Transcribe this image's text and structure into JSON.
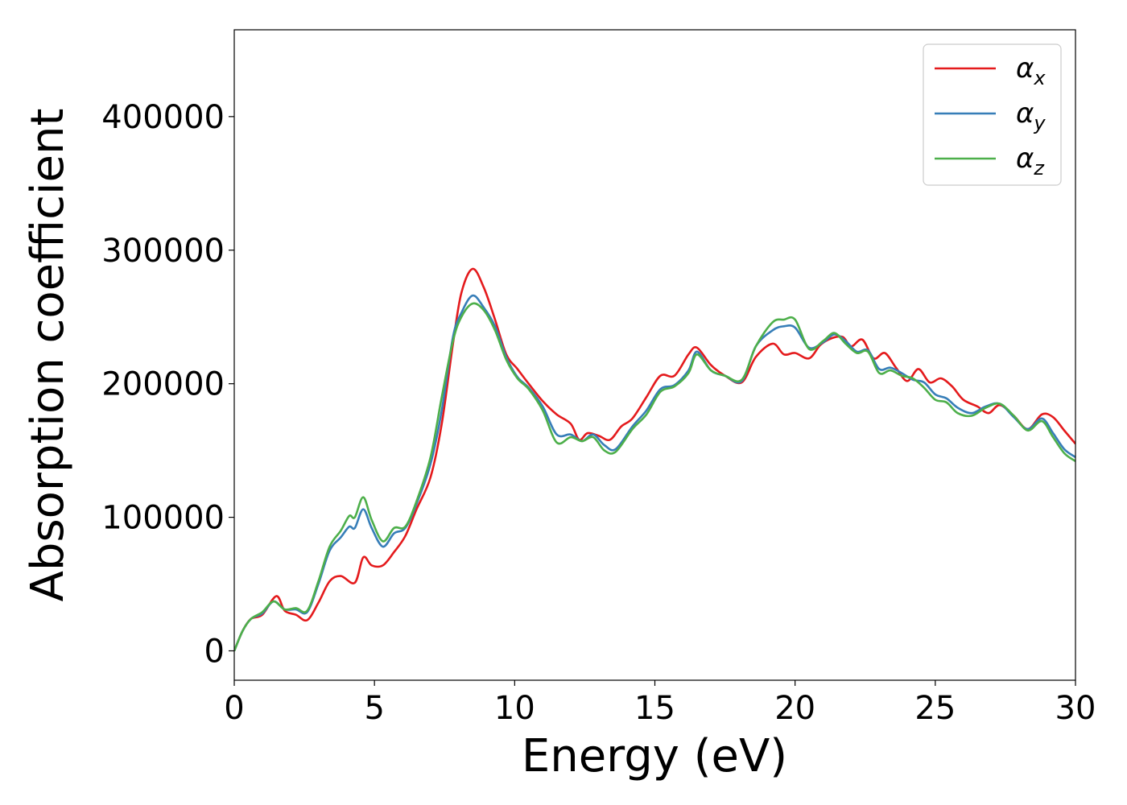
{
  "chart_data": {
    "type": "line",
    "title": "",
    "xlabel": "Energy (eV)",
    "ylabel": "Absorption coefficient",
    "xlim": [
      0,
      30
    ],
    "ylim": [
      -22000,
      465000
    ],
    "xticks": [
      0,
      5,
      10,
      15,
      20,
      25,
      30
    ],
    "yticks": [
      0,
      100000,
      200000,
      300000,
      400000
    ],
    "grid": false,
    "legend_position": "top-right",
    "series": [
      {
        "name": "α_x",
        "legend_main": "α",
        "legend_sub": "x",
        "color": "#e41a1c",
        "points": [
          [
            0,
            0
          ],
          [
            0.3,
            15000
          ],
          [
            0.6,
            24000
          ],
          [
            1.0,
            27000
          ],
          [
            1.5,
            41000
          ],
          [
            1.8,
            30000
          ],
          [
            2.2,
            27000
          ],
          [
            2.6,
            23000
          ],
          [
            3.0,
            36000
          ],
          [
            3.4,
            52000
          ],
          [
            3.8,
            56000
          ],
          [
            4.3,
            51000
          ],
          [
            4.6,
            70000
          ],
          [
            4.9,
            64000
          ],
          [
            5.3,
            64000
          ],
          [
            5.7,
            74000
          ],
          [
            6.1,
            86000
          ],
          [
            6.5,
            106000
          ],
          [
            7.0,
            130000
          ],
          [
            7.4,
            170000
          ],
          [
            7.8,
            230000
          ],
          [
            8.1,
            268000
          ],
          [
            8.5,
            286000
          ],
          [
            8.9,
            272000
          ],
          [
            9.3,
            248000
          ],
          [
            9.7,
            222000
          ],
          [
            10.1,
            211000
          ],
          [
            10.5,
            200000
          ],
          [
            11.0,
            187000
          ],
          [
            11.5,
            177000
          ],
          [
            12.0,
            170000
          ],
          [
            12.3,
            158000
          ],
          [
            12.6,
            163000
          ],
          [
            13.0,
            161000
          ],
          [
            13.4,
            158000
          ],
          [
            13.8,
            168000
          ],
          [
            14.2,
            174000
          ],
          [
            14.7,
            190000
          ],
          [
            15.2,
            206000
          ],
          [
            15.7,
            206000
          ],
          [
            16.2,
            222000
          ],
          [
            16.5,
            227000
          ],
          [
            17.0,
            214000
          ],
          [
            17.5,
            206000
          ],
          [
            18.1,
            201000
          ],
          [
            18.6,
            220000
          ],
          [
            19.2,
            230000
          ],
          [
            19.6,
            222000
          ],
          [
            20.0,
            223000
          ],
          [
            20.5,
            219000
          ],
          [
            20.9,
            229000
          ],
          [
            21.3,
            234000
          ],
          [
            21.7,
            235000
          ],
          [
            22.0,
            228000
          ],
          [
            22.4,
            233000
          ],
          [
            22.8,
            219000
          ],
          [
            23.2,
            223000
          ],
          [
            23.6,
            212000
          ],
          [
            24.0,
            202000
          ],
          [
            24.4,
            211000
          ],
          [
            24.8,
            201000
          ],
          [
            25.2,
            204000
          ],
          [
            25.6,
            198000
          ],
          [
            26.0,
            188000
          ],
          [
            26.5,
            183000
          ],
          [
            26.9,
            178000
          ],
          [
            27.3,
            184000
          ],
          [
            27.8,
            176000
          ],
          [
            28.3,
            166000
          ],
          [
            28.8,
            177000
          ],
          [
            29.2,
            175000
          ],
          [
            29.6,
            165000
          ],
          [
            30.0,
            155000
          ]
        ]
      },
      {
        "name": "α_y",
        "legend_main": "α",
        "legend_sub": "y",
        "color": "#377eb8",
        "points": [
          [
            0,
            0
          ],
          [
            0.3,
            15000
          ],
          [
            0.6,
            24000
          ],
          [
            1.0,
            28000
          ],
          [
            1.4,
            37000
          ],
          [
            1.8,
            31000
          ],
          [
            2.2,
            31000
          ],
          [
            2.6,
            29000
          ],
          [
            3.0,
            50000
          ],
          [
            3.4,
            75000
          ],
          [
            3.8,
            85000
          ],
          [
            4.1,
            93000
          ],
          [
            4.3,
            92000
          ],
          [
            4.6,
            106000
          ],
          [
            4.9,
            92000
          ],
          [
            5.3,
            78000
          ],
          [
            5.7,
            88000
          ],
          [
            6.1,
            92000
          ],
          [
            6.5,
            110000
          ],
          [
            7.0,
            140000
          ],
          [
            7.4,
            180000
          ],
          [
            7.8,
            235000
          ],
          [
            8.1,
            253000
          ],
          [
            8.5,
            266000
          ],
          [
            8.9,
            257000
          ],
          [
            9.3,
            243000
          ],
          [
            9.7,
            220000
          ],
          [
            10.1,
            205000
          ],
          [
            10.5,
            197000
          ],
          [
            11.0,
            183000
          ],
          [
            11.5,
            162000
          ],
          [
            12.0,
            162000
          ],
          [
            12.4,
            157000
          ],
          [
            12.8,
            162000
          ],
          [
            13.2,
            154000
          ],
          [
            13.6,
            151000
          ],
          [
            14.2,
            168000
          ],
          [
            14.7,
            180000
          ],
          [
            15.2,
            196000
          ],
          [
            15.7,
            199000
          ],
          [
            16.2,
            210000
          ],
          [
            16.5,
            224000
          ],
          [
            17.0,
            210000
          ],
          [
            17.5,
            206000
          ],
          [
            18.1,
            202000
          ],
          [
            18.6,
            228000
          ],
          [
            19.2,
            240000
          ],
          [
            19.6,
            243000
          ],
          [
            20.0,
            242000
          ],
          [
            20.5,
            227000
          ],
          [
            21.0,
            231000
          ],
          [
            21.4,
            237000
          ],
          [
            21.8,
            232000
          ],
          [
            22.2,
            224000
          ],
          [
            22.6,
            225000
          ],
          [
            23.0,
            211000
          ],
          [
            23.4,
            212000
          ],
          [
            23.8,
            208000
          ],
          [
            24.2,
            203000
          ],
          [
            24.6,
            201000
          ],
          [
            25.0,
            192000
          ],
          [
            25.4,
            189000
          ],
          [
            25.8,
            182000
          ],
          [
            26.3,
            178000
          ],
          [
            26.8,
            183000
          ],
          [
            27.3,
            185000
          ],
          [
            27.8,
            175000
          ],
          [
            28.3,
            166000
          ],
          [
            28.8,
            174000
          ],
          [
            29.2,
            163000
          ],
          [
            29.6,
            151000
          ],
          [
            30.0,
            145000
          ]
        ]
      },
      {
        "name": "α_z",
        "legend_main": "α",
        "legend_sub": "z",
        "color": "#4daf4a",
        "points": [
          [
            0,
            0
          ],
          [
            0.3,
            15000
          ],
          [
            0.6,
            24000
          ],
          [
            1.0,
            29000
          ],
          [
            1.4,
            37000
          ],
          [
            1.8,
            31000
          ],
          [
            2.2,
            32000
          ],
          [
            2.6,
            30000
          ],
          [
            3.0,
            52000
          ],
          [
            3.4,
            78000
          ],
          [
            3.8,
            90000
          ],
          [
            4.1,
            101000
          ],
          [
            4.3,
            100000
          ],
          [
            4.6,
            115000
          ],
          [
            4.9,
            98000
          ],
          [
            5.3,
            82000
          ],
          [
            5.7,
            92000
          ],
          [
            6.1,
            93000
          ],
          [
            6.5,
            112000
          ],
          [
            7.0,
            145000
          ],
          [
            7.4,
            190000
          ],
          [
            7.8,
            232000
          ],
          [
            8.1,
            250000
          ],
          [
            8.5,
            260000
          ],
          [
            8.9,
            255000
          ],
          [
            9.3,
            240000
          ],
          [
            9.7,
            218000
          ],
          [
            10.1,
            204000
          ],
          [
            10.5,
            196000
          ],
          [
            11.0,
            180000
          ],
          [
            11.5,
            156000
          ],
          [
            12.0,
            160000
          ],
          [
            12.4,
            157000
          ],
          [
            12.8,
            160000
          ],
          [
            13.2,
            150000
          ],
          [
            13.6,
            149000
          ],
          [
            14.2,
            166000
          ],
          [
            14.7,
            177000
          ],
          [
            15.2,
            194000
          ],
          [
            15.7,
            198000
          ],
          [
            16.2,
            208000
          ],
          [
            16.5,
            222000
          ],
          [
            17.0,
            210000
          ],
          [
            17.5,
            206000
          ],
          [
            18.1,
            203000
          ],
          [
            18.6,
            228000
          ],
          [
            19.2,
            246000
          ],
          [
            19.6,
            248000
          ],
          [
            20.0,
            248000
          ],
          [
            20.5,
            226000
          ],
          [
            21.0,
            232000
          ],
          [
            21.4,
            238000
          ],
          [
            21.8,
            230000
          ],
          [
            22.2,
            223000
          ],
          [
            22.6,
            224000
          ],
          [
            23.0,
            208000
          ],
          [
            23.4,
            210000
          ],
          [
            23.8,
            206000
          ],
          [
            24.2,
            204000
          ],
          [
            24.6,
            197000
          ],
          [
            25.0,
            188000
          ],
          [
            25.4,
            186000
          ],
          [
            25.8,
            178000
          ],
          [
            26.3,
            176000
          ],
          [
            26.8,
            182000
          ],
          [
            27.3,
            185000
          ],
          [
            27.8,
            176000
          ],
          [
            28.3,
            165000
          ],
          [
            28.8,
            172000
          ],
          [
            29.2,
            160000
          ],
          [
            29.6,
            148000
          ],
          [
            30.0,
            142000
          ]
        ]
      }
    ]
  }
}
